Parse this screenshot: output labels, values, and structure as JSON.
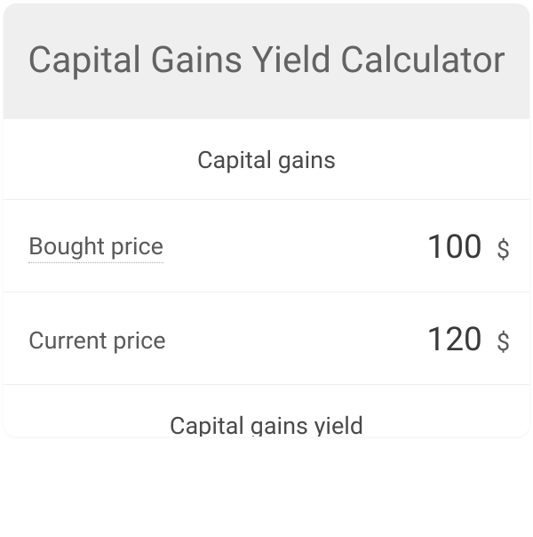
{
  "header": {
    "title": "Capital Gains Yield Calculator"
  },
  "sections": {
    "capital_gains": {
      "title": "Capital gains",
      "rows": {
        "bought_price": {
          "label": "Bought price",
          "value": "100",
          "unit": "$",
          "dotted": true
        },
        "current_price": {
          "label": "Current price",
          "value": "120",
          "unit": "$",
          "dotted": false
        }
      }
    },
    "capital_gains_yield": {
      "title": "Capital gains yield"
    }
  },
  "colors": {
    "header_bg": "#efefef",
    "card_bg": "#ffffff",
    "border": "#eeeeee",
    "title_text": "#636363",
    "label_text": "#5a5a5a",
    "value_text": "#3a3a3a"
  }
}
